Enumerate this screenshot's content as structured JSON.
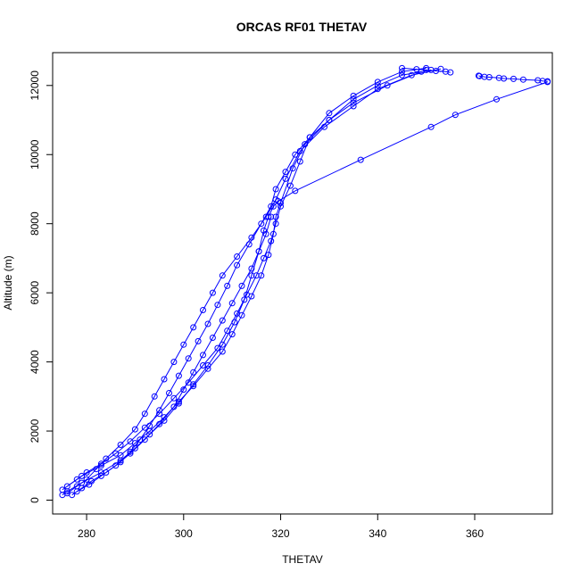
{
  "chart_data": {
    "type": "scatter",
    "title": "ORCAS RF01 THETAV",
    "xlabel": "THETAV",
    "ylabel": "Altitude (m)",
    "xlim": [
      273,
      376
    ],
    "ylim": [
      -400,
      12950
    ],
    "xticks": [
      280,
      300,
      320,
      340,
      360
    ],
    "yticks": [
      0,
      2000,
      4000,
      6000,
      8000,
      10000,
      12000
    ],
    "grid": false,
    "legend": "none",
    "color": "#0000ff",
    "marker": "open-circle",
    "series": [
      {
        "type": "line",
        "x": [
          275.0,
          276.0,
          279.0,
          283.0,
          287.0,
          290.0,
          293.0,
          296.0,
          299.0,
          302.0,
          305.0,
          308.0,
          310.5,
          312.5,
          314.0,
          315.5,
          316.5,
          317.5,
          318.5,
          319.5,
          323.0,
          336.5,
          351.0,
          356.0,
          364.5,
          375.0
        ],
        "y": [
          150,
          250,
          500,
          800,
          1150,
          1500,
          1900,
          2300,
          2800,
          3350,
          3900,
          4500,
          5150,
          5800,
          6500,
          7200,
          7800,
          8200,
          8500,
          8650,
          8950,
          9850,
          10800,
          11150,
          11600,
          12100
        ]
      },
      {
        "type": "line",
        "x": [
          375.0,
          374.0,
          373.0,
          370.0,
          368.0,
          366.0,
          365.0,
          363.0,
          362.0,
          361.0,
          360.8
        ],
        "y": [
          12120,
          12130,
          12150,
          12170,
          12190,
          12200,
          12220,
          12240,
          12250,
          12270,
          12280
        ]
      },
      {
        "type": "line",
        "x": [
          345.0,
          348.0,
          350.0,
          352.0,
          354.0,
          355.0
        ],
        "y": [
          12500,
          12470,
          12450,
          12420,
          12400,
          12380
        ]
      },
      {
        "type": "line",
        "x": [
          275.0,
          278.0,
          280.0,
          283.0,
          286.0,
          289.0,
          292.0,
          295.0,
          298.0,
          301.0,
          304.0,
          307.0,
          309.0,
          311.0,
          313.0,
          315.0,
          316.5,
          318.0,
          319.0,
          320.0,
          322.0,
          324.0,
          326.0,
          330.0,
          335.0,
          340.0,
          345.0,
          350.0
        ],
        "y": [
          300,
          600,
          800,
          1050,
          1350,
          1700,
          2100,
          2500,
          2950,
          3400,
          3900,
          4400,
          4900,
          5400,
          5950,
          6500,
          7000,
          7500,
          8000,
          8500,
          9100,
          9800,
          10500,
          11200,
          11700,
          12100,
          12400,
          12500
        ]
      },
      {
        "type": "line",
        "x": [
          276.0,
          279.0,
          283.0,
          287.0,
          290.0,
          293.0,
          296.0,
          299.0,
          302.0,
          305.0,
          308.0,
          310.0,
          312.0,
          314.0,
          316.0,
          317.5,
          318.5,
          319.0,
          320.0,
          322.5,
          325.0,
          330.0,
          335.0,
          340.0,
          345.0,
          351.0
        ],
        "y": [
          400,
          700,
          1000,
          1300,
          1650,
          2000,
          2400,
          2850,
          3300,
          3800,
          4300,
          4800,
          5350,
          5900,
          6500,
          7100,
          7700,
          8200,
          8600,
          9600,
          10300,
          11000,
          11600,
          12000,
          12300,
          12450
        ]
      },
      {
        "type": "line",
        "x": [
          276.0,
          278.0,
          280.0,
          282.0,
          284.0,
          287.0,
          290.0,
          292.0,
          294.0,
          296.0,
          298.0,
          300.0,
          302.0,
          304.0,
          306.0,
          308.0,
          311.0,
          314.0,
          317.0,
          319.0,
          321.0,
          324.0,
          329.0,
          335.0,
          340.0,
          347.0,
          353.0
        ],
        "y": [
          200,
          400,
          600,
          900,
          1200,
          1600,
          2050,
          2500,
          3000,
          3500,
          4000,
          4500,
          5000,
          5500,
          6000,
          6500,
          7050,
          7600,
          8200,
          8700,
          9300,
          10100,
          10800,
          11400,
          11900,
          12300,
          12480
        ]
      },
      {
        "type": "line",
        "x": [
          277.0,
          279.0,
          281.0,
          284.0,
          287.0,
          289.0,
          291.0,
          293.0,
          295.0,
          297.0,
          299.0,
          301.0,
          303.0,
          305.0,
          307.0,
          309.0,
          311.0,
          313.5,
          316.0,
          318.0,
          319.0,
          321.0,
          323.0,
          326.0,
          330.0,
          335.0,
          342.0,
          349.0
        ],
        "y": [
          150,
          350,
          550,
          800,
          1100,
          1400,
          1750,
          2150,
          2600,
          3100,
          3600,
          4100,
          4600,
          5100,
          5650,
          6200,
          6800,
          7400,
          8000,
          8500,
          9000,
          9500,
          10000,
          10500,
          11000,
          11500,
          12000,
          12400
        ]
      },
      {
        "type": "line",
        "x": [
          278.0,
          280.5,
          283.0,
          286.0,
          289.0,
          292.0,
          295.0,
          298.0,
          300.0,
          302.0,
          304.0,
          306.0,
          308.0,
          310.0,
          312.0,
          314.0,
          315.5,
          317.0,
          318.0
        ],
        "y": [
          250,
          450,
          700,
          1000,
          1350,
          1750,
          2200,
          2700,
          3200,
          3700,
          4200,
          4700,
          5200,
          5700,
          6200,
          6700,
          7200,
          7700,
          8200
        ]
      }
    ]
  }
}
